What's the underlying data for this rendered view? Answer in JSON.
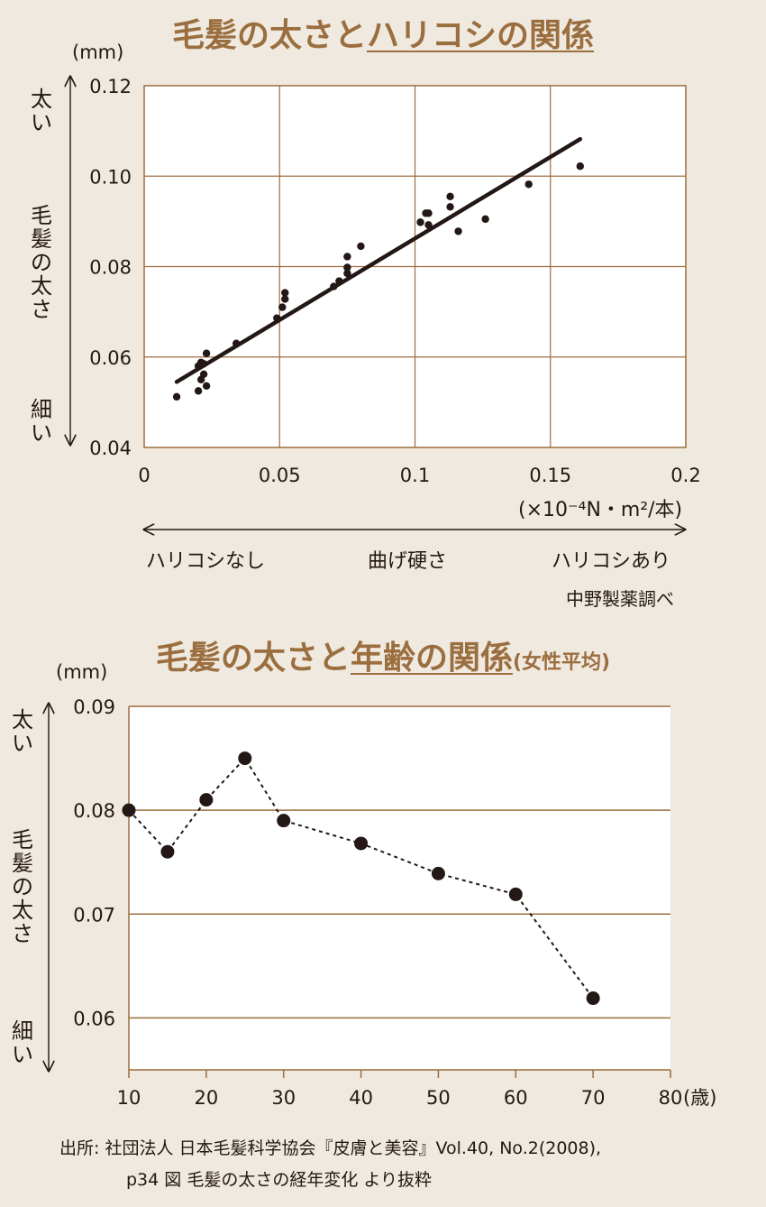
{
  "chart1": {
    "title_part1": "毛髪の太さと",
    "title_part2": "ハリコシの関係",
    "unit": "(mm)",
    "y_top_label": "太い",
    "y_mid_label": "毛髪の太さ",
    "y_bottom_label": "細い",
    "x_unit": "(×10⁻⁴N・m²/本)",
    "x_left_label": "ハリコシなし",
    "x_mid_label": "曲げ硬さ",
    "x_right_label": "ハリコシあり",
    "credit": "中野製薬調べ"
  },
  "chart2": {
    "title_part1": "毛髪の太さと",
    "title_part2": "年齢の関係",
    "title_suffix": "(女性平均)",
    "unit": "(mm)",
    "y_top_label": "太い",
    "y_mid_label": "毛髪の太さ",
    "y_bottom_label": "細い"
  },
  "source_line1": "出所: 社団法人 日本毛髪科学協会『皮膚と美容』Vol.40, No.2(2008),",
  "source_line2": "p34 図 毛髪の太さの経年変化 より抜粋",
  "chart_data": [
    {
      "type": "scatter",
      "title": "毛髪の太さとハリコシの関係",
      "xlabel": "曲げ硬さ",
      "ylabel": "毛髪の太さ",
      "xlim": [
        0,
        0.2
      ],
      "ylim": [
        0.04,
        0.12
      ],
      "x_ticks": [
        "0",
        "0.05",
        "0.1",
        "0.15",
        "0.2"
      ],
      "y_ticks": [
        "0.04",
        "0.06",
        "0.08",
        "0.10",
        "0.12"
      ],
      "grid": true,
      "points": [
        [
          0.012,
          0.0512
        ],
        [
          0.02,
          0.0525
        ],
        [
          0.02,
          0.058
        ],
        [
          0.021,
          0.0588
        ],
        [
          0.021,
          0.055
        ],
        [
          0.022,
          0.0562
        ],
        [
          0.022,
          0.0585
        ],
        [
          0.023,
          0.0608
        ],
        [
          0.023,
          0.0536
        ],
        [
          0.034,
          0.063
        ],
        [
          0.049,
          0.0686
        ],
        [
          0.051,
          0.071
        ],
        [
          0.052,
          0.0728
        ],
        [
          0.052,
          0.0742
        ],
        [
          0.07,
          0.0756
        ],
        [
          0.072,
          0.0768
        ],
        [
          0.075,
          0.0785
        ],
        [
          0.075,
          0.0798
        ],
        [
          0.075,
          0.0822
        ],
        [
          0.08,
          0.0845
        ],
        [
          0.102,
          0.0898
        ],
        [
          0.104,
          0.0918
        ],
        [
          0.105,
          0.0918
        ],
        [
          0.105,
          0.0892
        ],
        [
          0.113,
          0.0932
        ],
        [
          0.113,
          0.0955
        ],
        [
          0.116,
          0.0878
        ],
        [
          0.126,
          0.0905
        ],
        [
          0.142,
          0.0982
        ],
        [
          0.161,
          0.1022
        ]
      ],
      "trend_line": [
        [
          0.012,
          0.0545
        ],
        [
          0.161,
          0.1082
        ]
      ]
    },
    {
      "type": "line",
      "title": "毛髪の太さと年齢の関係(女性平均)",
      "xlabel": "(歳)",
      "ylabel": "毛髪の太さ",
      "xlim": [
        10,
        80
      ],
      "ylim": [
        0.055,
        0.09
      ],
      "x_ticks": [
        "10",
        "20",
        "30",
        "40",
        "50",
        "60",
        "70",
        "80"
      ],
      "y_ticks": [
        "0.06",
        "0.07",
        "0.08",
        "0.09"
      ],
      "grid": true,
      "x": [
        10,
        15,
        20,
        25,
        30,
        40,
        50,
        60,
        70
      ],
      "values": [
        0.08,
        0.076,
        0.081,
        0.085,
        0.079,
        0.0768,
        0.0739,
        0.0719,
        0.0619
      ]
    }
  ]
}
